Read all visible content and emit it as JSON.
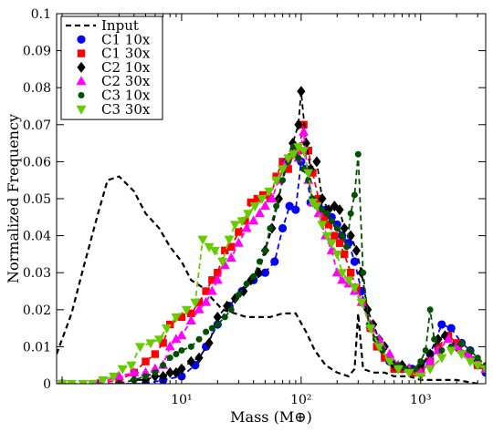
{
  "chart_data": {
    "type": "line",
    "title": "",
    "xlabel": "Mass (M⊕)",
    "ylabel": "Normalized Frequency",
    "xscale": "log",
    "xlim": [
      0.9,
      3500
    ],
    "ylim": [
      0,
      0.1
    ],
    "x_ticks": [
      {
        "value": 10,
        "label": "10¹"
      },
      {
        "value": 100,
        "label": "10²"
      },
      {
        "value": 1000,
        "label": "10³"
      }
    ],
    "y_ticks": [
      0,
      0.01,
      0.02,
      0.03,
      0.04,
      0.05,
      0.06,
      0.07,
      0.08,
      0.09,
      0.1
    ],
    "y_tick_labels": [
      "0",
      "0.01",
      "0.02",
      "0.03",
      "0.04",
      "0.05",
      "0.06",
      "0.07",
      "0.08",
      "0.09",
      "0.1"
    ],
    "grid": false,
    "legend_position": "top-left",
    "series": [
      {
        "name": "Input",
        "color": "#000000",
        "marker": "none",
        "x": [
          0.9,
          1.2,
          1.5,
          2.0,
          2.4,
          3.0,
          4.0,
          5.0,
          6.5,
          8.0,
          10.0,
          12.0,
          15.0,
          18.0,
          22.0,
          28.0,
          35.0,
          45.0,
          55.0,
          70.0,
          90.0,
          110.0,
          130.0,
          160.0,
          200.0,
          250.0,
          280.0,
          300.0,
          330.0,
          400.0,
          500.0,
          600.0,
          800.0,
          1000.0,
          1500.0,
          2000.0,
          3000.0
        ],
        "y": [
          0.008,
          0.019,
          0.031,
          0.046,
          0.055,
          0.056,
          0.052,
          0.046,
          0.042,
          0.037,
          0.033,
          0.028,
          0.026,
          0.023,
          0.02,
          0.019,
          0.018,
          0.018,
          0.018,
          0.019,
          0.019,
          0.014,
          0.009,
          0.005,
          0.003,
          0.002,
          0.004,
          0.019,
          0.004,
          0.003,
          0.003,
          0.002,
          0.002,
          0.001,
          0.001,
          0.001,
          0.0
        ]
      },
      {
        "name": "C1 10x",
        "color": "#0000ff",
        "marker": "circle",
        "x": [
          1,
          2,
          3,
          5,
          7,
          10,
          13,
          16,
          20,
          25,
          32,
          40,
          50,
          60,
          70,
          80,
          90,
          100,
          110,
          120,
          140,
          160,
          180,
          200,
          220,
          250,
          280,
          320,
          380,
          450,
          550,
          700,
          850,
          1000,
          1200,
          1500,
          1800,
          2200,
          2600,
          3000,
          3500
        ],
        "y": [
          0.0,
          0.0,
          0.0,
          0.0,
          0.001,
          0.002,
          0.005,
          0.01,
          0.016,
          0.021,
          0.025,
          0.028,
          0.03,
          0.033,
          0.042,
          0.048,
          0.047,
          0.06,
          0.058,
          0.049,
          0.048,
          0.047,
          0.045,
          0.043,
          0.04,
          0.038,
          0.033,
          0.025,
          0.015,
          0.01,
          0.006,
          0.004,
          0.004,
          0.004,
          0.008,
          0.016,
          0.015,
          0.011,
          0.009,
          0.005,
          0.003
        ]
      },
      {
        "name": "C1 30x",
        "color": "#ff0000",
        "marker": "square",
        "x": [
          1,
          2,
          3,
          4,
          5,
          6,
          7,
          8,
          10,
          12,
          14,
          16,
          18,
          20,
          23,
          26,
          30,
          34,
          38,
          43,
          48,
          55,
          62,
          70,
          78,
          86,
          95,
          105,
          115,
          125,
          140,
          155,
          170,
          190,
          210,
          230,
          260,
          290,
          330,
          380,
          430,
          500,
          600,
          700,
          850,
          1000,
          1200,
          1400,
          1700,
          2000,
          2500,
          3000,
          3500
        ],
        "y": [
          0.0,
          0.0,
          0.001,
          0.003,
          0.006,
          0.008,
          0.011,
          0.016,
          0.018,
          0.019,
          0.022,
          0.025,
          0.028,
          0.03,
          0.036,
          0.037,
          0.041,
          0.044,
          0.049,
          0.05,
          0.051,
          0.05,
          0.056,
          0.06,
          0.058,
          0.062,
          0.063,
          0.07,
          0.063,
          0.057,
          0.05,
          0.045,
          0.043,
          0.04,
          0.038,
          0.035,
          0.03,
          0.026,
          0.022,
          0.015,
          0.01,
          0.007,
          0.004,
          0.004,
          0.003,
          0.003,
          0.006,
          0.01,
          0.013,
          0.011,
          0.008,
          0.005,
          0.004
        ]
      },
      {
        "name": "C2 10x",
        "color": "#000000",
        "marker": "diamond",
        "x": [
          3,
          4,
          5,
          6,
          7,
          8,
          9,
          10,
          12,
          14,
          17,
          20,
          24,
          28,
          33,
          38,
          44,
          50,
          57,
          65,
          75,
          85,
          95,
          100,
          110,
          120,
          135,
          150,
          170,
          190,
          210,
          230,
          260,
          290,
          320,
          360,
          400,
          450,
          500,
          600,
          700,
          800,
          1000,
          1200,
          1400,
          1600,
          2000,
          2500,
          3000,
          3500
        ],
        "y": [
          0.0,
          0.001,
          0.001,
          0.002,
          0.002,
          0.003,
          0.003,
          0.004,
          0.006,
          0.007,
          0.011,
          0.018,
          0.021,
          0.023,
          0.025,
          0.028,
          0.03,
          0.036,
          0.042,
          0.05,
          0.06,
          0.065,
          0.07,
          0.079,
          0.065,
          0.058,
          0.06,
          0.05,
          0.047,
          0.048,
          0.047,
          0.042,
          0.04,
          0.036,
          0.03,
          0.02,
          0.016,
          0.012,
          0.01,
          0.005,
          0.005,
          0.004,
          0.005,
          0.008,
          0.012,
          0.013,
          0.01,
          0.008,
          0.006,
          0.004
        ]
      },
      {
        "name": "C2 30x",
        "color": "#ff00ff",
        "marker": "triangle-up",
        "x": [
          1,
          2,
          3,
          4,
          5,
          6,
          7,
          8,
          9,
          10,
          12,
          14,
          16,
          18,
          20,
          23,
          26,
          30,
          35,
          40,
          45,
          50,
          57,
          65,
          75,
          85,
          95,
          105,
          115,
          125,
          140,
          160,
          180,
          200,
          220,
          250,
          280,
          320,
          380,
          450,
          550,
          650,
          800,
          1000,
          1200,
          1400,
          1700,
          2000,
          2500,
          3000,
          3500
        ],
        "y": [
          0.0,
          0.0,
          0.002,
          0.003,
          0.003,
          0.004,
          0.005,
          0.01,
          0.012,
          0.013,
          0.017,
          0.02,
          0.022,
          0.025,
          0.028,
          0.032,
          0.034,
          0.038,
          0.042,
          0.044,
          0.046,
          0.048,
          0.05,
          0.055,
          0.06,
          0.062,
          0.061,
          0.068,
          0.055,
          0.049,
          0.046,
          0.04,
          0.036,
          0.03,
          0.028,
          0.027,
          0.025,
          0.022,
          0.016,
          0.012,
          0.008,
          0.005,
          0.004,
          0.003,
          0.006,
          0.009,
          0.012,
          0.01,
          0.008,
          0.006,
          0.004
        ]
      },
      {
        "name": "C3 10x",
        "color": "#005000",
        "marker": "circle-small",
        "x": [
          3,
          4,
          5,
          6,
          7,
          8,
          9,
          10,
          12,
          14,
          16,
          18,
          20,
          23,
          26,
          30,
          35,
          40,
          45,
          50,
          55,
          62,
          70,
          78,
          86,
          95,
          105,
          115,
          125,
          135,
          150,
          165,
          180,
          200,
          220,
          240,
          260,
          280,
          300,
          330,
          370,
          420,
          480,
          550,
          650,
          750,
          900,
          1000,
          1100,
          1200,
          1300,
          1500,
          1800,
          2200,
          2600,
          3000,
          3500
        ],
        "y": [
          0.0,
          0.001,
          0.002,
          0.003,
          0.005,
          0.007,
          0.008,
          0.009,
          0.01,
          0.012,
          0.014,
          0.015,
          0.016,
          0.018,
          0.02,
          0.024,
          0.027,
          0.029,
          0.033,
          0.036,
          0.042,
          0.048,
          0.055,
          0.06,
          0.064,
          0.061,
          0.058,
          0.055,
          0.05,
          0.048,
          0.047,
          0.046,
          0.044,
          0.042,
          0.04,
          0.037,
          0.046,
          0.051,
          0.062,
          0.03,
          0.016,
          0.012,
          0.009,
          0.006,
          0.005,
          0.004,
          0.004,
          0.006,
          0.009,
          0.02,
          0.012,
          0.009,
          0.01,
          0.011,
          0.009,
          0.007,
          0.005
        ]
      },
      {
        "name": "C3 30x",
        "color": "#66cc00",
        "marker": "triangle-down",
        "x": [
          1,
          1.2,
          1.5,
          1.8,
          2.2,
          2.7,
          3.2,
          3.8,
          4.5,
          5.5,
          6.5,
          7.5,
          9,
          11,
          13,
          15,
          17,
          19,
          22,
          25,
          28,
          32,
          36,
          41,
          47,
          54,
          62,
          70,
          78,
          86,
          95,
          105,
          115,
          125,
          135,
          150,
          165,
          180,
          200,
          220,
          250,
          280,
          320,
          380,
          450,
          550,
          650,
          800,
          1000,
          1200,
          1500,
          1800,
          2200,
          2600,
          3000,
          3500
        ],
        "y": [
          0.0,
          0.0,
          0.0,
          0.0,
          0.001,
          0.002,
          0.004,
          0.005,
          0.01,
          0.011,
          0.012,
          0.015,
          0.018,
          0.02,
          0.022,
          0.039,
          0.037,
          0.036,
          0.033,
          0.039,
          0.043,
          0.044,
          0.046,
          0.048,
          0.05,
          0.052,
          0.055,
          0.058,
          0.061,
          0.062,
          0.064,
          0.063,
          0.057,
          0.049,
          0.048,
          0.043,
          0.04,
          0.038,
          0.035,
          0.03,
          0.028,
          0.026,
          0.022,
          0.015,
          0.01,
          0.006,
          0.004,
          0.003,
          0.002,
          0.004,
          0.007,
          0.009,
          0.008,
          0.006,
          0.005,
          0.004
        ]
      }
    ]
  }
}
